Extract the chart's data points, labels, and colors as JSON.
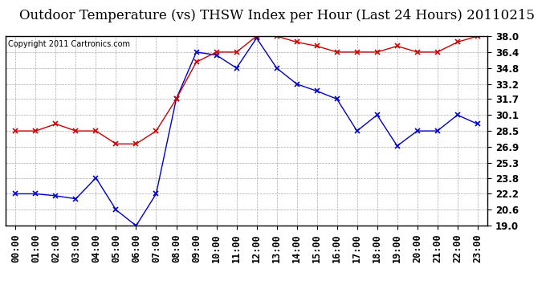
{
  "title": "Outdoor Temperature (vs) THSW Index per Hour (Last 24 Hours) 20110215",
  "copyright": "Copyright 2011 Cartronics.com",
  "hours": [
    "00:00",
    "01:00",
    "02:00",
    "03:00",
    "04:00",
    "05:00",
    "06:00",
    "07:00",
    "08:00",
    "09:00",
    "10:00",
    "11:00",
    "12:00",
    "13:00",
    "14:00",
    "15:00",
    "16:00",
    "17:00",
    "18:00",
    "19:00",
    "20:00",
    "21:00",
    "22:00",
    "23:00"
  ],
  "blue_data": [
    22.2,
    22.2,
    22.0,
    21.7,
    23.8,
    20.6,
    19.0,
    22.2,
    31.7,
    36.4,
    36.1,
    34.8,
    37.8,
    34.8,
    33.2,
    32.5,
    31.7,
    28.5,
    30.1,
    27.0,
    28.5,
    28.5,
    30.1,
    29.2
  ],
  "red_data": [
    28.5,
    28.5,
    29.2,
    28.5,
    28.5,
    27.2,
    27.2,
    28.5,
    31.7,
    35.4,
    36.4,
    36.4,
    38.0,
    38.0,
    37.4,
    37.0,
    36.4,
    36.4,
    36.4,
    37.0,
    36.4,
    36.4,
    37.4,
    38.0
  ],
  "blue_color": "#0000cc",
  "red_color": "#cc0000",
  "bg_color": "#ffffff",
  "grid_color": "#aaaaaa",
  "ylim": [
    19.0,
    38.0
  ],
  "yticks": [
    19.0,
    20.6,
    22.2,
    23.8,
    25.3,
    26.9,
    28.5,
    30.1,
    31.7,
    33.2,
    34.8,
    36.4,
    38.0
  ],
  "title_fontsize": 12,
  "copyright_fontsize": 7,
  "tick_fontsize": 8.5
}
